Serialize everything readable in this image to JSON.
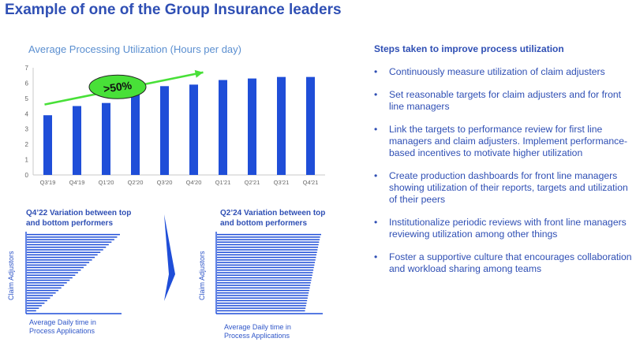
{
  "page": {
    "title": "Example of one of the Group Insurance leaders"
  },
  "chart_data": [
    {
      "type": "bar",
      "title": "Average Processing Utilization (Hours per day)",
      "categories": [
        "Q3'19",
        "Q4'19",
        "Q1'20",
        "Q2'20",
        "Q3'20",
        "Q4'20",
        "Q1'21",
        "Q2'21",
        "Q3'21",
        "Q4'21"
      ],
      "values": [
        3.9,
        4.5,
        4.7,
        5.3,
        5.8,
        5.9,
        6.2,
        6.3,
        6.4,
        6.4
      ],
      "yticks": [
        0,
        1,
        2,
        3,
        4,
        5,
        6,
        7
      ],
      "ylim": [
        0,
        7
      ],
      "grid": false,
      "bar_color": "#1f4ed8",
      "annotation": {
        "text": ">50%",
        "fill": "#48e038",
        "arrow_color": "#48e038"
      }
    },
    {
      "type": "bar",
      "orientation": "horizontal",
      "title": "Q4’22 Variation between top and bottom performers",
      "xlabel": "Average Daily time in Process Applications",
      "ylabel": "Claim Adjustors",
      "values": [
        1.0,
        0.97,
        0.94,
        0.91,
        0.88,
        0.85,
        0.82,
        0.79,
        0.76,
        0.73,
        0.7,
        0.67,
        0.64,
        0.61,
        0.58,
        0.55,
        0.52,
        0.49,
        0.46,
        0.43,
        0.4,
        0.37,
        0.34,
        0.31,
        0.28,
        0.25,
        0.22,
        0.19,
        0.16,
        0.13,
        0.1
      ]
    },
    {
      "type": "bar",
      "orientation": "horizontal",
      "title": "Q2’24 Variation between top and bottom performers",
      "xlabel": "Average Daily time in Process Applications",
      "ylabel": "Claim Adjustors",
      "values": [
        1.0,
        0.99,
        0.985,
        0.98,
        0.975,
        0.97,
        0.965,
        0.96,
        0.955,
        0.95,
        0.945,
        0.94,
        0.935,
        0.93,
        0.925,
        0.92,
        0.915,
        0.91,
        0.905,
        0.9,
        0.895,
        0.89,
        0.885,
        0.88,
        0.875,
        0.87,
        0.865,
        0.86,
        0.855,
        0.85,
        0.845
      ]
    }
  ],
  "steps": {
    "title": "Steps taken to improve process utilization",
    "items": [
      "Continuously measure utilization of claim adjusters",
      "Set reasonable targets for claim adjusters and for front line managers",
      "Link the targets to performance review for first line managers and claim adjusters. Implement performance-based incentives to motivate higher utilization",
      "Create production dashboards for front line managers showing utilization of their reports, targets and utilization of their peers",
      "Institutionalize periodic reviews with front line managers reviewing utilization among other things",
      "Foster a supportive culture that encourages collaboration and workload sharing among teams"
    ],
    "bullet": "•"
  }
}
